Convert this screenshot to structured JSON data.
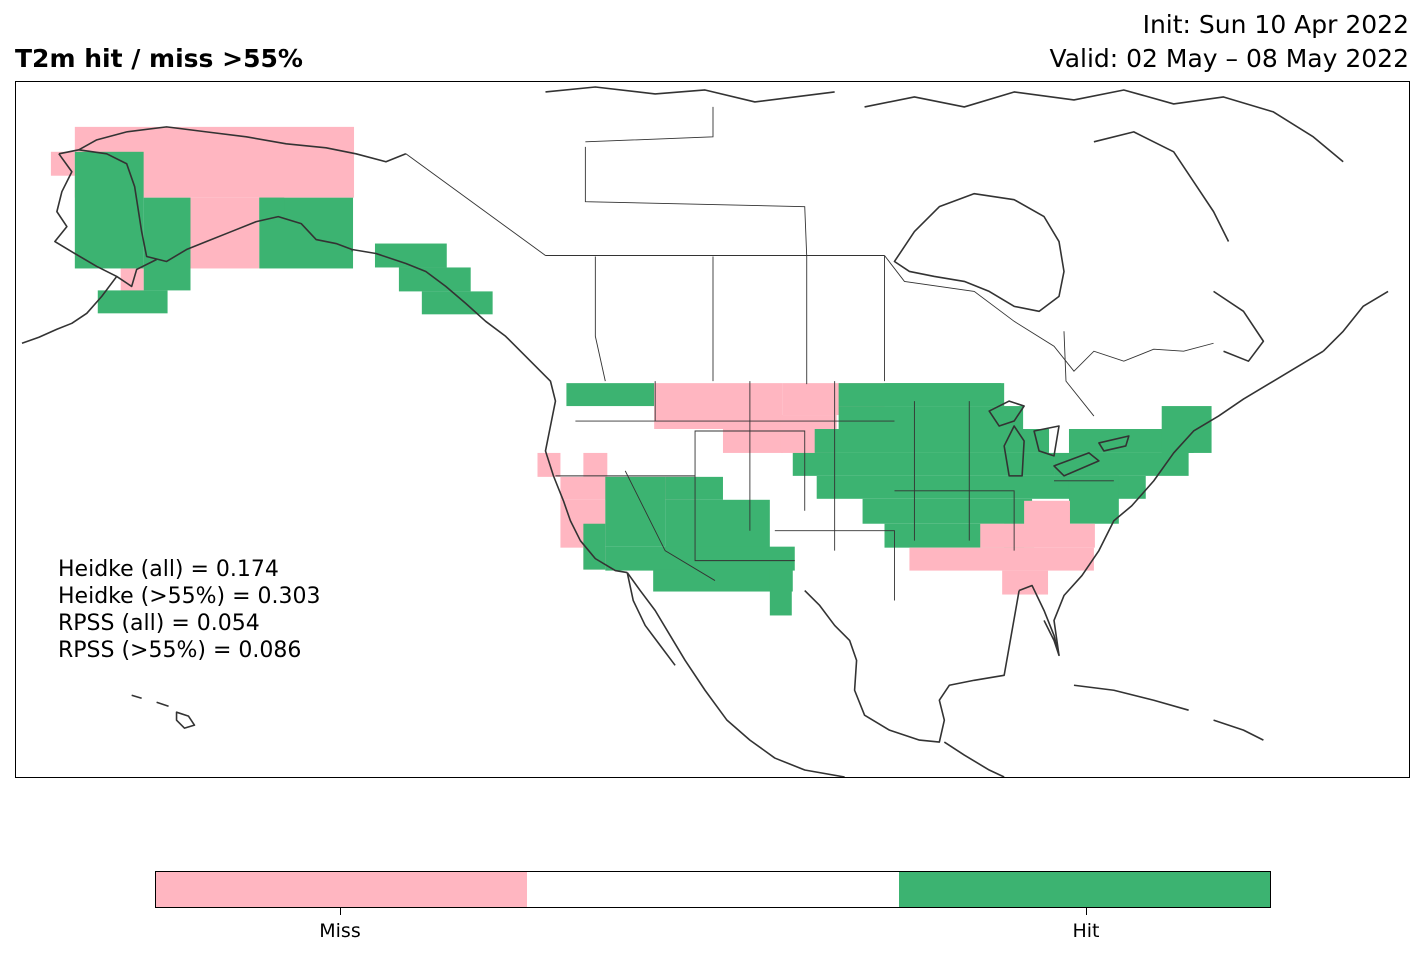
{
  "header": {
    "title": "T2m hit / miss  >55%",
    "init": "Init: Sun 10 Apr 2022",
    "valid": "Valid: 02 May – 08 May 2022"
  },
  "stats": [
    "Heidke (all) = 0.174",
    "Heidke (>55%) = 0.303",
    "RPSS (all) = 0.054",
    "RPSS (>55%) = 0.086"
  ],
  "colors": {
    "miss": "#ffb6c1",
    "neutral": "#ffffff",
    "hit": "#3cb371",
    "coast": "#333333"
  },
  "colorbar": {
    "labels": [
      "Miss",
      "Hit"
    ]
  }
}
